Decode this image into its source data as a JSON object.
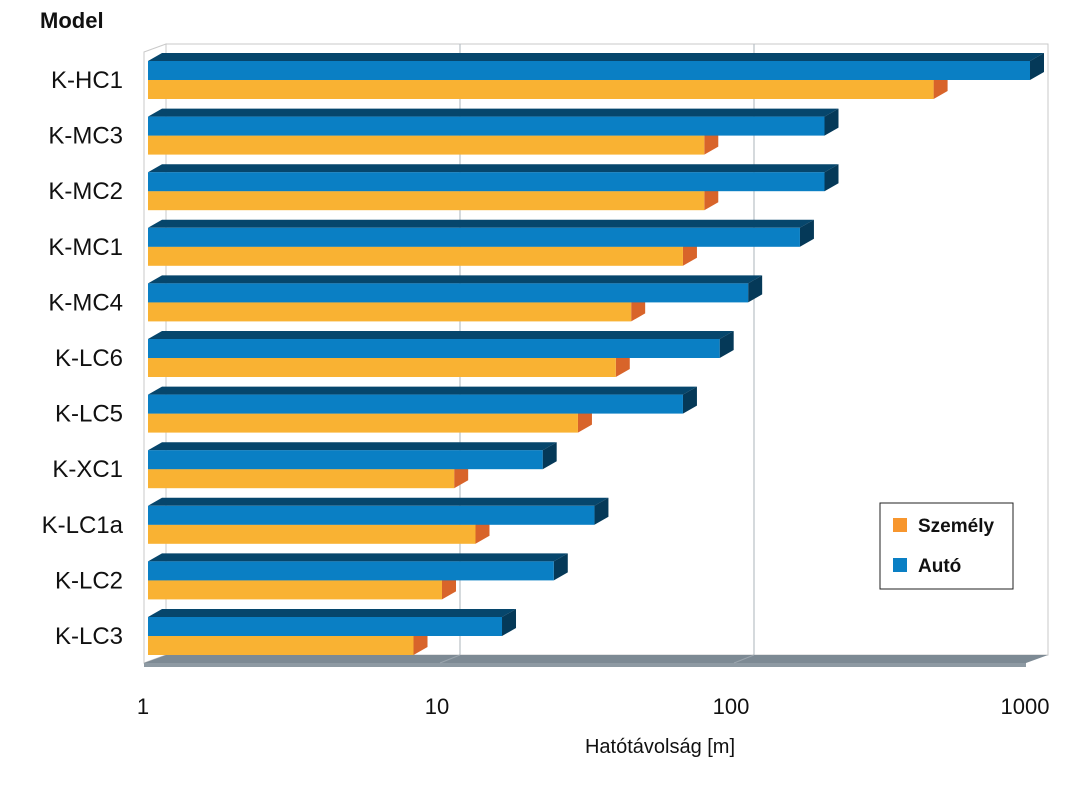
{
  "chart_data": {
    "type": "bar",
    "orientation": "horizontal",
    "title": "Model",
    "xlabel": "Hatótávolság [m]",
    "ylabel": "",
    "xscale": "log",
    "xlim": [
      1,
      1000
    ],
    "x_ticks": [
      "1",
      "10",
      "100",
      "1000"
    ],
    "categories": [
      "K-HC1",
      "K-MC3",
      "K-MC2",
      "K-MC1",
      "K-MC4",
      "K-LC6",
      "K-LC5",
      "K-XC1",
      "K-LC1a",
      "K-LC2",
      "K-LC3"
    ],
    "series": [
      {
        "name": "Autó",
        "color": "#0a7fc4",
        "values": [
          1000,
          200,
          200,
          165,
          110,
          88,
          66,
          22,
          33,
          24,
          16
        ]
      },
      {
        "name": "Személy",
        "color": "#f9b233",
        "values": [
          470,
          78,
          78,
          66,
          44,
          39,
          29,
          11,
          13,
          10,
          8
        ]
      }
    ],
    "legend": {
      "position": "bottom-right",
      "entries": [
        "Személy",
        "Autó"
      ],
      "colors": [
        "#f7962e",
        "#0a7fc4"
      ]
    },
    "grid": true
  }
}
